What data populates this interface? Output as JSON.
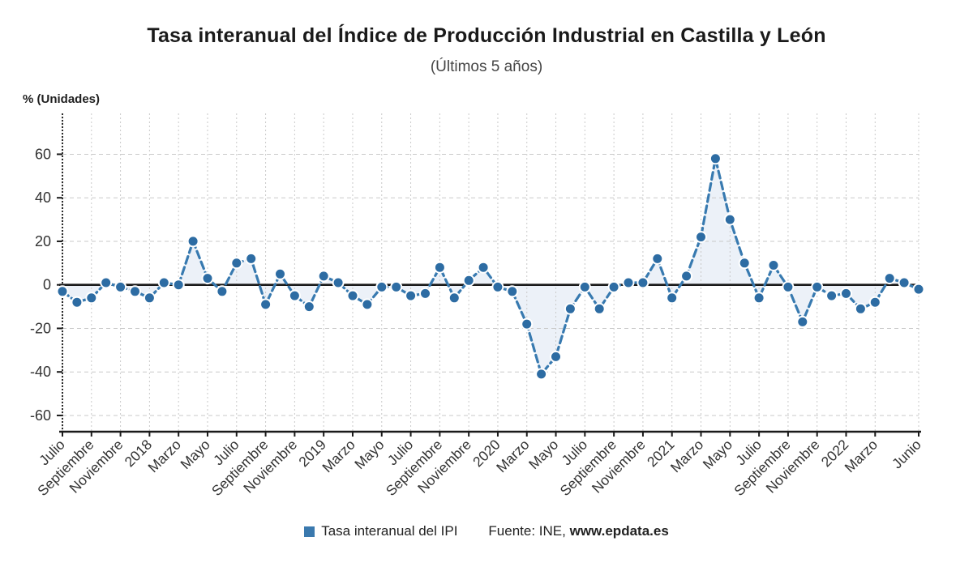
{
  "title": "Tasa interanual del Índice de Producción Industrial en Castilla y León",
  "subtitle": "(Últimos 5 años)",
  "y_axis_label": "% (Unidades)",
  "footer": {
    "legend_label": "Tasa interanual del IPI",
    "source_prefix": "Fuente: INE, ",
    "source_link": "www.epdata.es"
  },
  "colors": {
    "line": "#387ab0",
    "dot": "#2d6ca3",
    "dot_ring": "#ffffff",
    "fill": "#e9eff7",
    "legend_swatch": "#3a79ae",
    "grid": "#c9c9c9",
    "axis": "#1a1a1a",
    "tick_text": "#333333"
  },
  "chart_data": {
    "type": "line",
    "title": "Tasa interanual del Índice de Producción Industrial en Castilla y León",
    "subtitle": "(Últimos 5 años)",
    "ylabel": "% (Unidades)",
    "series": [
      {
        "name": "Tasa interanual del IPI",
        "period_start": "Julio 2017",
        "period_end": "Junio 2022",
        "values": [
          -3,
          -8,
          -6,
          1,
          -1,
          -3,
          -6,
          1,
          0,
          20,
          3,
          -3,
          10,
          12,
          -9,
          5,
          -5,
          -10,
          4,
          1,
          -5,
          -9,
          -1,
          -1,
          -5,
          -4,
          8,
          -6,
          2,
          8,
          -1,
          -3,
          -18,
          -41,
          -33,
          -11,
          -1,
          -11,
          -1,
          1,
          1,
          12,
          -6,
          4,
          22,
          58,
          30,
          10,
          -6,
          9,
          -1,
          -17,
          -1,
          -5,
          -4,
          -11,
          -8,
          3,
          1,
          -2
        ]
      }
    ],
    "n_points": 60,
    "x_tick_labels": [
      "Julio",
      "Septiembre",
      "Noviembre",
      "2018",
      "Marzo",
      "Mayo",
      "Julio",
      "Septiembre",
      "Noviembre",
      "2019",
      "Marzo",
      "Mayo",
      "Julio",
      "Septiembre",
      "Noviembre",
      "2020",
      "Marzo",
      "Mayo",
      "Julio",
      "Septiembre",
      "Noviembre",
      "2021",
      "Marzo",
      "Mayo",
      "Julio",
      "Septiembre",
      "Noviembre",
      "2022",
      "Marzo",
      "Junio"
    ],
    "x_tick_indices": [
      0,
      2,
      4,
      6,
      8,
      10,
      12,
      14,
      16,
      18,
      20,
      22,
      24,
      26,
      28,
      30,
      32,
      34,
      36,
      38,
      40,
      42,
      44,
      46,
      48,
      50,
      52,
      54,
      56,
      59
    ],
    "yticks": [
      60,
      40,
      20,
      0,
      -20,
      -40,
      -60
    ],
    "ylim": [
      -67,
      79
    ],
    "grid": true,
    "legend_position": "bottom",
    "baseline": 0
  }
}
